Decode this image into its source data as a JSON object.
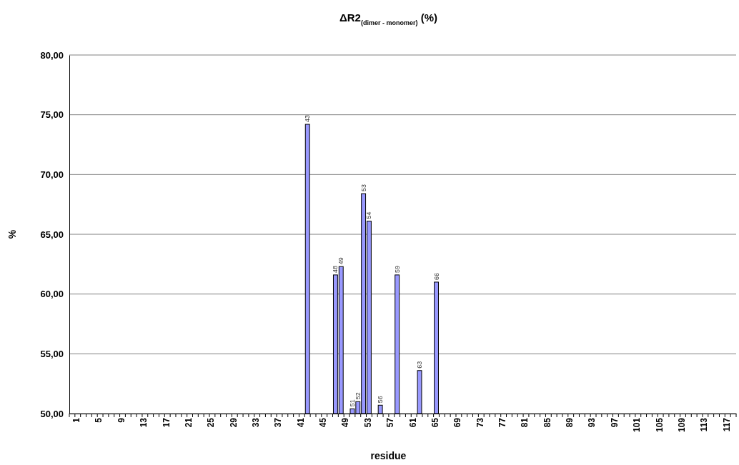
{
  "chart_data": {
    "type": "bar",
    "title": "ΔR2$_{(dimer - monomer)}$ (%)",
    "xlabel": "residue",
    "ylabel": "%",
    "categories": [
      "1",
      null,
      null,
      null,
      "5",
      null,
      null,
      null,
      "9",
      null,
      null,
      null,
      "13",
      null,
      null,
      null,
      "17",
      null,
      null,
      null,
      "21",
      null,
      null,
      null,
      "25",
      null,
      null,
      null,
      "29",
      null,
      null,
      null,
      "33",
      null,
      null,
      null,
      "37",
      null,
      null,
      null,
      "41",
      null,
      null,
      null,
      "45",
      null,
      null,
      null,
      "49",
      null,
      null,
      null,
      "53",
      null,
      null,
      null,
      "57",
      null,
      null,
      null,
      "61",
      null,
      null,
      null,
      "65",
      null,
      null,
      null,
      "69",
      null,
      null,
      null,
      "73",
      null,
      null,
      null,
      "77",
      null,
      null,
      null,
      "81",
      null,
      null,
      null,
      "85",
      null,
      null,
      null,
      "89",
      null,
      null,
      null,
      "93",
      null,
      null,
      null,
      "97",
      null,
      null,
      null,
      "101",
      null,
      null,
      null,
      "105",
      null,
      null,
      null,
      "109",
      null,
      null,
      null,
      "113",
      null,
      null,
      null,
      "117",
      null,
      null
    ],
    "values": [
      null,
      null,
      null,
      null,
      null,
      null,
      null,
      null,
      null,
      null,
      null,
      null,
      null,
      null,
      null,
      null,
      null,
      null,
      null,
      null,
      null,
      null,
      null,
      null,
      null,
      null,
      null,
      null,
      null,
      null,
      null,
      null,
      null,
      null,
      null,
      null,
      null,
      null,
      null,
      null,
      null,
      null,
      74.2,
      null,
      null,
      null,
      null,
      61.6,
      62.3,
      null,
      50.4,
      51.0,
      68.4,
      66.1,
      null,
      50.7,
      null,
      null,
      61.6,
      null,
      null,
      null,
      53.6,
      null,
      null,
      61.0,
      null,
      null,
      null,
      null,
      null,
      null,
      null,
      null,
      null,
      null,
      null,
      null,
      null,
      null,
      null,
      null,
      null,
      null,
      null,
      null,
      null,
      null,
      null,
      null,
      null,
      null,
      null,
      null,
      null,
      null,
      null,
      null,
      null,
      null,
      null,
      null,
      null,
      null,
      null,
      null,
      null,
      null,
      null,
      null,
      null,
      null,
      null,
      null,
      null,
      null,
      null,
      null,
      null
    ],
    "annotations": [
      {
        "text": "43",
        "y": 74.2
      },
      {
        "text": "48",
        "y": 61.6
      },
      {
        "text": "49",
        "y": 62.3
      },
      {
        "text": "51",
        "y": 50.4
      },
      {
        "text": "52",
        "y": 51.0
      },
      {
        "text": "53",
        "y": 68.4
      },
      {
        "text": "54",
        "y": 66.1
      },
      {
        "text": "56",
        "y": 50.7
      },
      {
        "text": "59",
        "y": 61.59
      },
      {
        "text": "63",
        "y": 53.6
      },
      {
        "text": "66",
        "y": 61.0
      }
    ],
    "color": "#9999ff",
    "ylim": [
      50,
      80
    ],
    "yticks": [
      {
        "value": 50,
        "label": "50,00"
      },
      {
        "value": 55,
        "label": "55,00"
      },
      {
        "value": 60,
        "label": "60,00"
      },
      {
        "value": 65,
        "label": "65,00"
      },
      {
        "value": 70,
        "label": "70,00"
      },
      {
        "value": 75,
        "label": "75,00"
      },
      {
        "value": 80,
        "label": "80,00"
      }
    ],
    "grid": "y"
  }
}
